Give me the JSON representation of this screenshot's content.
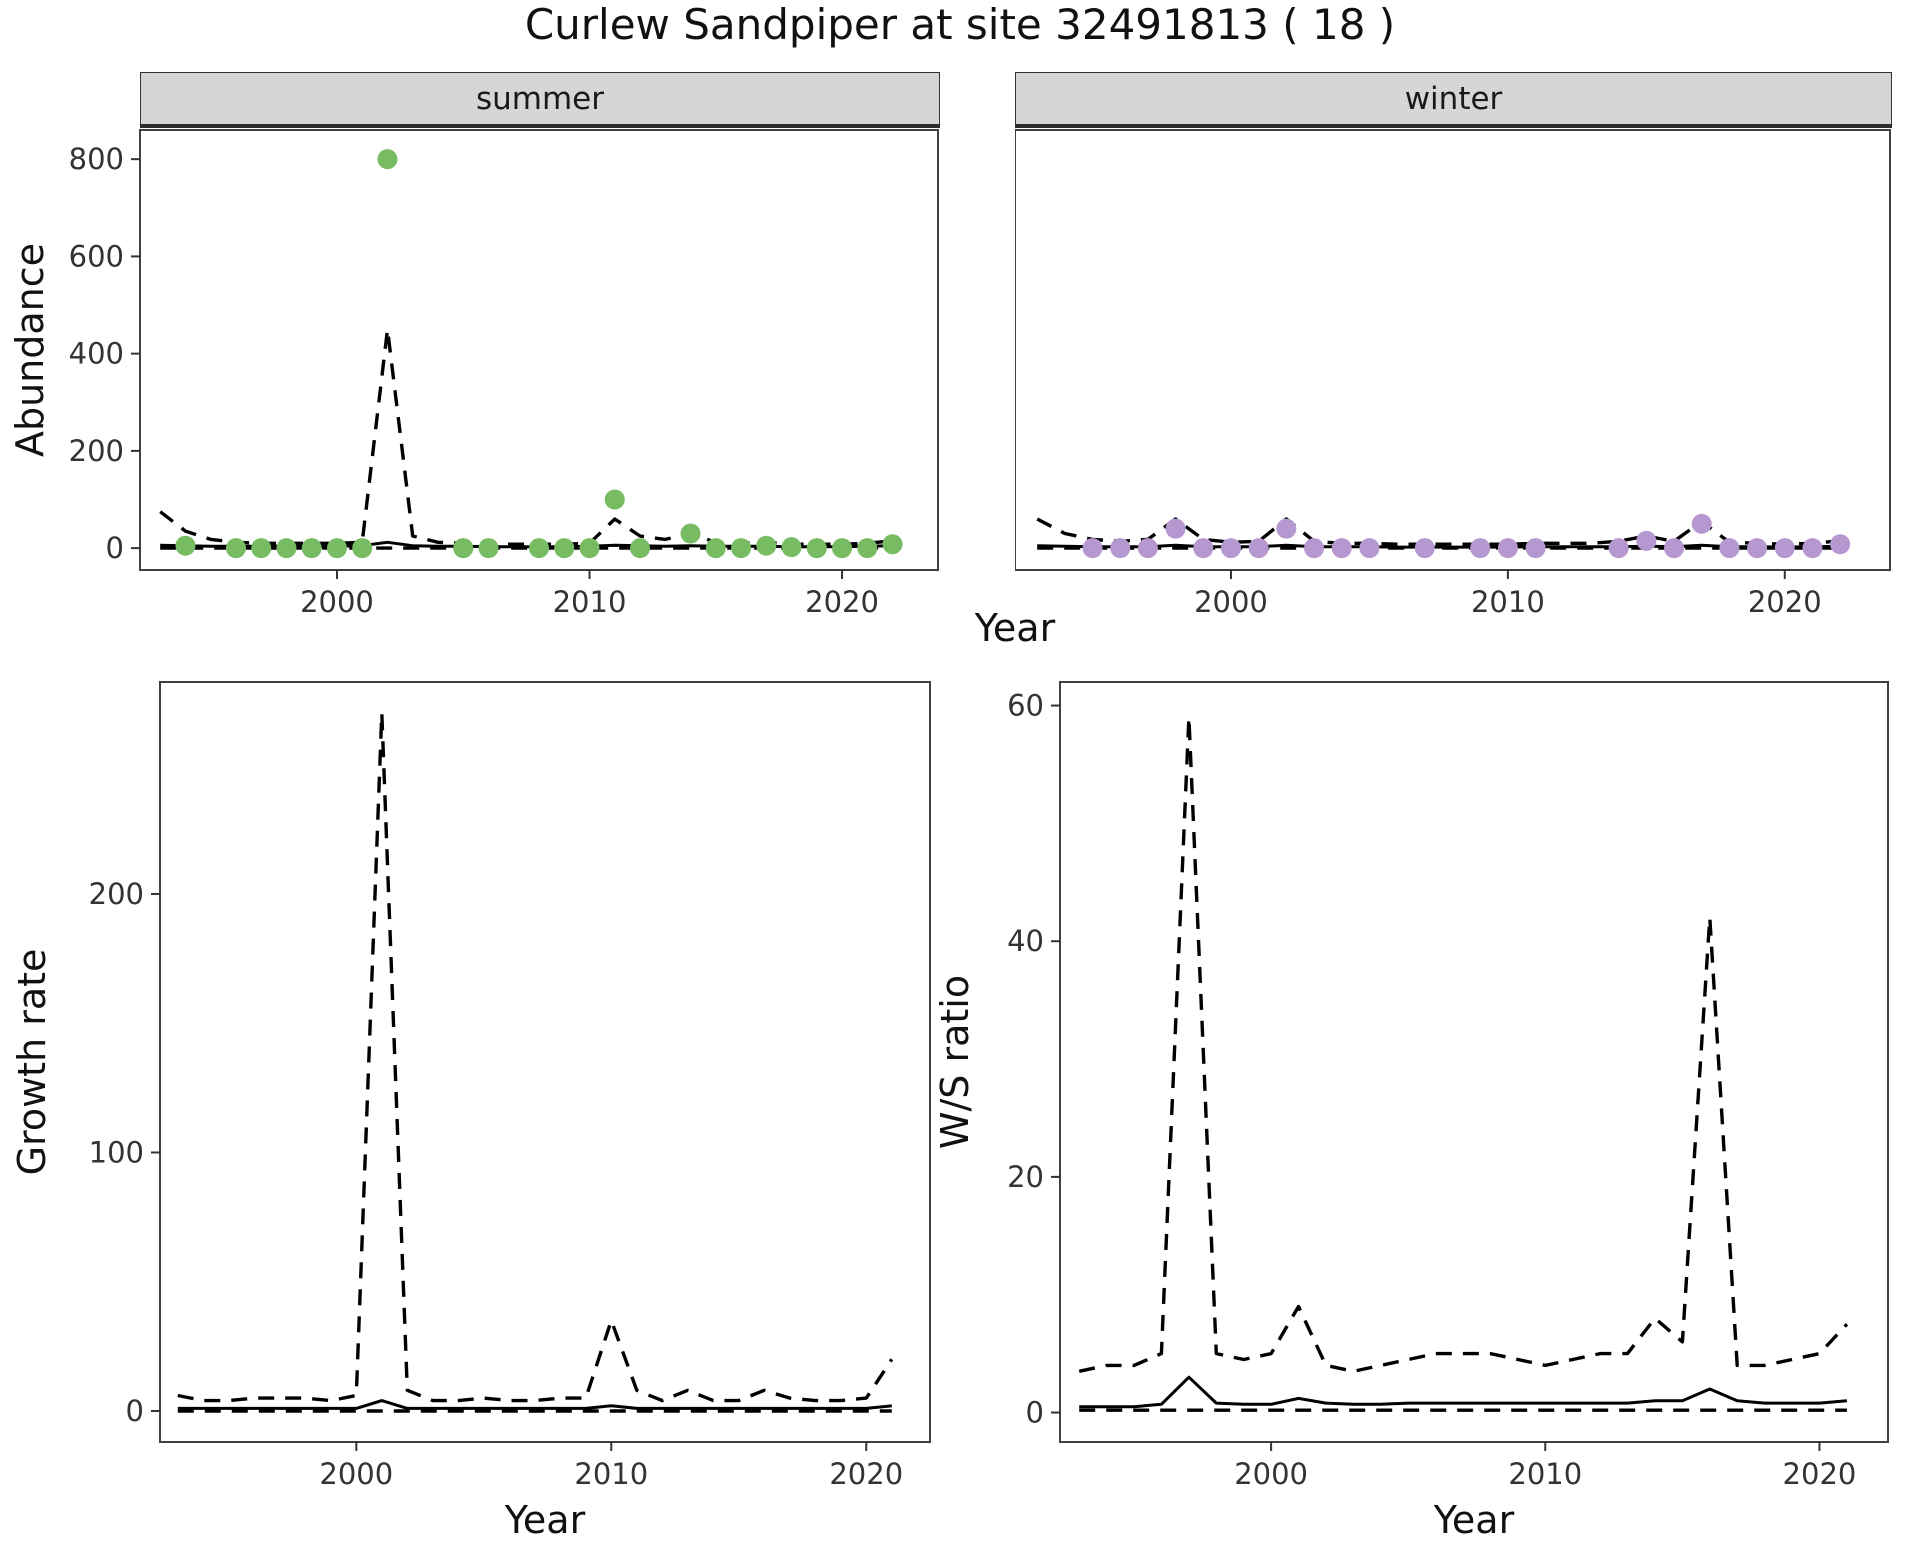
{
  "title": "Curlew Sandpiper at site 32491813 ( 18 )",
  "labels": {
    "year": "Year",
    "abundance": "Abundance",
    "growth": "Growth rate",
    "ws": "W/S ratio",
    "summer": "summer",
    "winter": "winter"
  },
  "colors": {
    "summer_point": "#77bb63",
    "winter_point": "#b698d1",
    "line": "#000000",
    "strip_bg": "#d6d6d6"
  },
  "chart_data": [
    {
      "id": "abundance-summer",
      "type": "line",
      "facet": "summer",
      "x_start": 1993,
      "xlim": [
        1992.2,
        2023.8
      ],
      "ylim": [
        -45,
        860
      ],
      "xticks": [
        2000,
        2010,
        2020
      ],
      "yticks": [
        0,
        200,
        400,
        600,
        800
      ],
      "show_ylabels": true,
      "series": [
        {
          "name": "upper-ci",
          "dash": true,
          "y": [
            75,
            35,
            18,
            12,
            10,
            10,
            10,
            10,
            12,
            450,
            25,
            12,
            10,
            8,
            8,
            8,
            8,
            10,
            60,
            25,
            18,
            30,
            12,
            10,
            12,
            8,
            8,
            8,
            10,
            15
          ]
        },
        {
          "name": "fit",
          "dash": false,
          "y": [
            6,
            5,
            4,
            4,
            4,
            4,
            4,
            4,
            5,
            12,
            5,
            4,
            4,
            3,
            3,
            3,
            3,
            4,
            6,
            5,
            4,
            5,
            4,
            4,
            4,
            3,
            3,
            3,
            4,
            5
          ]
        },
        {
          "name": "lower-ci",
          "dash": true,
          "y": [
            0,
            0,
            0,
            0,
            0,
            0,
            0,
            0,
            0,
            0,
            0,
            0,
            0,
            0,
            0,
            0,
            0,
            0,
            0,
            0,
            0,
            0,
            0,
            0,
            0,
            0,
            0,
            0,
            0,
            0
          ]
        }
      ],
      "points": {
        "color": "#77bb63",
        "x": [
          1994,
          1996,
          1997,
          1998,
          1999,
          2000,
          2001,
          2002,
          2005,
          2006,
          2008,
          2009,
          2010,
          2011,
          2012,
          2014,
          2015,
          2016,
          2017,
          2018,
          2019,
          2020,
          2021,
          2022
        ],
        "y": [
          5,
          0,
          0,
          0,
          0,
          0,
          0,
          800,
          0,
          0,
          0,
          0,
          0,
          100,
          0,
          30,
          0,
          0,
          5,
          2,
          0,
          0,
          0,
          8
        ]
      }
    },
    {
      "id": "abundance-winter",
      "type": "line",
      "facet": "winter",
      "x_start": 1993,
      "xlim": [
        1992.2,
        2023.8
      ],
      "ylim": [
        -45,
        860
      ],
      "xticks": [
        2000,
        2010,
        2020
      ],
      "yticks": [
        0,
        200,
        400,
        600,
        800
      ],
      "show_ylabels": false,
      "series": [
        {
          "name": "upper-ci",
          "dash": true,
          "y": [
            60,
            30,
            18,
            14,
            18,
            60,
            18,
            12,
            14,
            60,
            14,
            10,
            10,
            8,
            8,
            8,
            8,
            8,
            10,
            10,
            10,
            14,
            25,
            14,
            55,
            12,
            10,
            8,
            10,
            15
          ]
        },
        {
          "name": "fit",
          "dash": false,
          "y": [
            5,
            4,
            3,
            3,
            3,
            6,
            3,
            3,
            3,
            6,
            3,
            3,
            3,
            2,
            2,
            2,
            2,
            2,
            3,
            3,
            3,
            3,
            4,
            3,
            6,
            3,
            3,
            2,
            3,
            4
          ]
        },
        {
          "name": "lower-ci",
          "dash": true,
          "y": [
            0,
            0,
            0,
            0,
            0,
            0,
            0,
            0,
            0,
            0,
            0,
            0,
            0,
            0,
            0,
            0,
            0,
            0,
            0,
            0,
            0,
            0,
            0,
            0,
            0,
            0,
            0,
            0,
            0,
            0
          ]
        }
      ],
      "points": {
        "color": "#b698d1",
        "x": [
          1995,
          1996,
          1997,
          1998,
          1999,
          2000,
          2001,
          2002,
          2003,
          2004,
          2005,
          2007,
          2009,
          2010,
          2011,
          2014,
          2015,
          2016,
          2017,
          2018,
          2019,
          2020,
          2021,
          2022
        ],
        "y": [
          0,
          0,
          0,
          40,
          0,
          0,
          0,
          40,
          0,
          0,
          0,
          0,
          0,
          0,
          0,
          0,
          15,
          0,
          50,
          0,
          0,
          0,
          0,
          8
        ]
      }
    },
    {
      "id": "growth-rate",
      "type": "line",
      "x_start": 1993,
      "xlim": [
        1992.3,
        2022.5
      ],
      "ylim": [
        -12,
        282
      ],
      "xticks": [
        2000,
        2010,
        2020
      ],
      "yticks": [
        0,
        100,
        200
      ],
      "show_ylabels": true,
      "series": [
        {
          "name": "upper-ci",
          "dash": true,
          "y": [
            6,
            4,
            4,
            5,
            5,
            5,
            4,
            6,
            270,
            8,
            4,
            4,
            5,
            4,
            4,
            5,
            5,
            35,
            8,
            4,
            8,
            4,
            4,
            8,
            5,
            4,
            4,
            5,
            20
          ]
        },
        {
          "name": "fit",
          "dash": false,
          "y": [
            1,
            1,
            1,
            1,
            1,
            1,
            1,
            1,
            4,
            1,
            1,
            1,
            1,
            1,
            1,
            1,
            1,
            2,
            1,
            1,
            1,
            1,
            1,
            1,
            1,
            1,
            1,
            1,
            2
          ]
        },
        {
          "name": "lower-ci",
          "dash": true,
          "y": [
            0,
            0,
            0,
            0,
            0,
            0,
            0,
            0,
            0,
            0,
            0,
            0,
            0,
            0,
            0,
            0,
            0,
            0,
            0,
            0,
            0,
            0,
            0,
            0,
            0,
            0,
            0,
            0,
            0
          ]
        }
      ]
    },
    {
      "id": "ws-ratio",
      "type": "line",
      "x_start": 1993,
      "xlim": [
        1992.3,
        2022.5
      ],
      "ylim": [
        -2.5,
        62
      ],
      "xticks": [
        2000,
        2010,
        2020
      ],
      "yticks": [
        0,
        20,
        40,
        60
      ],
      "show_ylabels": true,
      "series": [
        {
          "name": "upper-ci",
          "dash": true,
          "y": [
            3.5,
            4,
            4,
            5,
            59,
            5,
            4.5,
            5,
            9,
            4,
            3.5,
            4,
            4.5,
            5,
            5,
            5,
            4.5,
            4,
            4.5,
            5,
            5,
            8,
            6,
            42,
            4,
            4,
            4.5,
            5,
            7.5
          ]
        },
        {
          "name": "fit",
          "dash": false,
          "y": [
            0.5,
            0.5,
            0.5,
            0.7,
            3,
            0.8,
            0.7,
            0.7,
            1.2,
            0.8,
            0.7,
            0.7,
            0.8,
            0.8,
            0.8,
            0.8,
            0.8,
            0.8,
            0.8,
            0.8,
            0.8,
            1,
            1,
            2,
            1,
            0.8,
            0.8,
            0.8,
            1
          ]
        },
        {
          "name": "lower-ci",
          "dash": true,
          "y": [
            0.2,
            0.2,
            0.2,
            0.2,
            0.2,
            0.2,
            0.2,
            0.2,
            0.2,
            0.2,
            0.2,
            0.2,
            0.2,
            0.2,
            0.2,
            0.2,
            0.2,
            0.2,
            0.2,
            0.2,
            0.2,
            0.2,
            0.2,
            0.2,
            0.2,
            0.2,
            0.2,
            0.2,
            0.2
          ]
        }
      ]
    }
  ]
}
